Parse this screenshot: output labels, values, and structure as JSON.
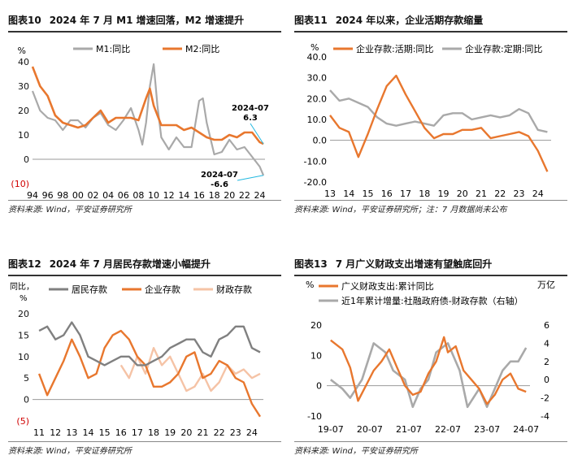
{
  "colors": {
    "orange": "#e8772e",
    "gray": "#a9a9a9",
    "darkgray": "#808080",
    "peach": "#f5c3a6",
    "red": "#d00000",
    "cyan": "#22b8e0"
  },
  "panels": [
    {
      "number": "图表10",
      "title": "2024 年 7 月 M1 增速回落，M2 增速提升",
      "source": "资料来源: Wind，平安证券研究所"
    },
    {
      "number": "图表11",
      "title": "2024 年以来，企业活期存款缩量",
      "source": "资料来源: Wind，平安证券研究所；注：7 月数据尚未公布"
    },
    {
      "number": "图表12",
      "title": "2024 年 7 月居民存款增速小幅提升",
      "source": "资料来源: Wind，平安证券研究所"
    },
    {
      "number": "图表13",
      "title": "7 月广义财政支出增速有望触底回升",
      "source": "资料来源: Wind，平安证券研究所"
    }
  ],
  "chart_data": [
    {
      "type": "line",
      "unit": "%",
      "ylim": [
        -10,
        40
      ],
      "yticks": [
        "40",
        "30",
        "20",
        "10",
        "0",
        "(10)"
      ],
      "xticks": [
        "94",
        "96",
        "98",
        "00",
        "02",
        "04",
        "06",
        "08",
        "10",
        "12",
        "14",
        "16",
        "18",
        "20",
        "22",
        "24"
      ],
      "series": [
        {
          "name": "M1:同比",
          "color": "gray",
          "x": [
            1994,
            1995,
            1996,
            1997,
            1998,
            1999,
            2000,
            2001,
            2002,
            2003,
            2004,
            2005,
            2006,
            2007,
            2008,
            2008.5,
            2009,
            2009.5,
            2010,
            2010.5,
            2011,
            2012,
            2013,
            2014,
            2015,
            2016,
            2016.5,
            2017,
            2018,
            2019,
            2020,
            2021,
            2022,
            2023,
            2024,
            2024.5
          ],
          "values": [
            28,
            20,
            17,
            16,
            12,
            16,
            16,
            13,
            17,
            19,
            14,
            12,
            16,
            21,
            12,
            6,
            15,
            30,
            39,
            22,
            9,
            4,
            9,
            5,
            5,
            24,
            25,
            15,
            2,
            3,
            8,
            4,
            5,
            1,
            -3,
            -6.6
          ]
        },
        {
          "name": "M2:同比",
          "color": "orange",
          "x": [
            1994,
            1995,
            1996,
            1997,
            1998,
            1999,
            2000,
            2001,
            2002,
            2003,
            2004,
            2005,
            2006,
            2007,
            2008,
            2009,
            2009.5,
            2010,
            2011,
            2012,
            2013,
            2014,
            2015,
            2016,
            2017,
            2018,
            2019,
            2020,
            2021,
            2022,
            2023,
            2024,
            2024.5
          ],
          "values": [
            38,
            30,
            26,
            18,
            15,
            14,
            13,
            14,
            17,
            20,
            15,
            17,
            17,
            17,
            16,
            25,
            29,
            22,
            14,
            14,
            14,
            12,
            13,
            11,
            9,
            8,
            8,
            10,
            9,
            11,
            11,
            7,
            6.3
          ]
        }
      ],
      "annotations": [
        {
          "label": "2024-07",
          "value": "6.3"
        },
        {
          "label": "2024-07",
          "value": "-6.6"
        }
      ]
    },
    {
      "type": "line",
      "unit": "%",
      "ylim": [
        -20,
        40
      ],
      "yticks": [
        "40.0",
        "30.0",
        "20.0",
        "10.0",
        "0.0",
        "-10.0",
        "-20.0"
      ],
      "xticks": [
        "13",
        "14",
        "15",
        "16",
        "17",
        "18",
        "19",
        "20",
        "21",
        "22",
        "23",
        "24"
      ],
      "series": [
        {
          "name": "企业存款:活期:同比",
          "color": "orange",
          "x": [
            2013,
            2013.5,
            2014,
            2014.5,
            2015,
            2015.5,
            2016,
            2016.5,
            2017,
            2017.5,
            2018,
            2018.5,
            2019,
            2019.5,
            2020,
            2020.5,
            2021,
            2021.5,
            2022,
            2022.5,
            2023,
            2023.5,
            2024,
            2024.5
          ],
          "values": [
            12,
            6,
            4,
            -8,
            3,
            15,
            26,
            31,
            22,
            14,
            6,
            1,
            3,
            3,
            5,
            5,
            6,
            1,
            2,
            3,
            4,
            2,
            -5,
            -15
          ]
        },
        {
          "name": "企业存款:定期:同比",
          "color": "gray",
          "x": [
            2013,
            2013.5,
            2014,
            2014.5,
            2015,
            2015.5,
            2016,
            2016.5,
            2017,
            2017.5,
            2018,
            2018.5,
            2019,
            2019.5,
            2020,
            2020.5,
            2021,
            2021.5,
            2022,
            2022.5,
            2023,
            2023.5,
            2024,
            2024.5
          ],
          "values": [
            24,
            19,
            20,
            18,
            16,
            11,
            8,
            7,
            8,
            9,
            8,
            7,
            12,
            13,
            13,
            10,
            11,
            12,
            11,
            12,
            15,
            13,
            5,
            4
          ]
        }
      ]
    },
    {
      "type": "line",
      "unit": "同比，%",
      "ylim": [
        -5,
        20
      ],
      "yticks": [
        "20",
        "15",
        "10",
        "5",
        "0",
        "(5)"
      ],
      "xticks": [
        "11",
        "12",
        "13",
        "14",
        "15",
        "16",
        "17",
        "18",
        "19",
        "20",
        "21",
        "22",
        "23",
        "24"
      ],
      "series": [
        {
          "name": "居民存款",
          "color": "darkgray",
          "x": [
            2011,
            2011.5,
            2012,
            2012.5,
            2013,
            2013.5,
            2014,
            2014.5,
            2015,
            2015.5,
            2016,
            2016.5,
            2017,
            2017.5,
            2018,
            2018.5,
            2019,
            2019.5,
            2020,
            2020.5,
            2021,
            2021.5,
            2022,
            2022.5,
            2023,
            2023.5,
            2024,
            2024.5
          ],
          "values": [
            16,
            17,
            14,
            15,
            18,
            15,
            10,
            9,
            8,
            9,
            10,
            10,
            8,
            8,
            9,
            10,
            12,
            13,
            14,
            14,
            11,
            10,
            14,
            15,
            17,
            17,
            12,
            11
          ]
        },
        {
          "name": "企业存款",
          "color": "orange",
          "x": [
            2011,
            2011.5,
            2012,
            2012.5,
            2013,
            2013.5,
            2014,
            2014.5,
            2015,
            2015.5,
            2016,
            2016.5,
            2017,
            2017.5,
            2018,
            2018.5,
            2019,
            2019.5,
            2020,
            2020.5,
            2021,
            2021.5,
            2022,
            2022.5,
            2023,
            2023.5,
            2024,
            2024.5
          ],
          "values": [
            6,
            1,
            5,
            9,
            14,
            10,
            5,
            6,
            12,
            15,
            16,
            14,
            10,
            8,
            3,
            3,
            4,
            6,
            10,
            11,
            5,
            6,
            9,
            8,
            5,
            4,
            -1,
            -4
          ]
        },
        {
          "name": "财政存款",
          "color": "peach",
          "x": [
            2011,
            2012,
            2013,
            2014,
            2015,
            2016,
            2016.5,
            2017,
            2017.5,
            2018,
            2018.5,
            2019,
            2019.5,
            2020,
            2020.5,
            2021,
            2021.5,
            2022,
            2022.5,
            2023,
            2023.5,
            2024,
            2024.5
          ],
          "values": [
            null,
            null,
            null,
            null,
            null,
            8,
            5,
            10,
            6,
            12,
            8,
            10,
            6,
            2,
            3,
            6,
            2,
            4,
            8,
            6,
            7,
            5,
            6
          ]
        }
      ]
    },
    {
      "type": "line",
      "unit": "%",
      "unit_right": "万亿",
      "ylim": [
        -10,
        20
      ],
      "ylim_right": [
        -4,
        6
      ],
      "yticks": [
        "20",
        "10",
        "0",
        "-10"
      ],
      "yticks_right": [
        "6",
        "4",
        "2",
        "0",
        "-2",
        "-4"
      ],
      "xticks": [
        "19-07",
        "20-07",
        "21-07",
        "22-07",
        "23-07",
        "24-07"
      ],
      "series": [
        {
          "name": "广义财政支出:累计同比",
          "color": "orange",
          "axis": "left",
          "x": [
            2019.5,
            2019.8,
            2020.0,
            2020.2,
            2020.4,
            2020.6,
            2020.8,
            2021.0,
            2021.2,
            2021.4,
            2021.6,
            2021.8,
            2022.0,
            2022.2,
            2022.4,
            2022.5,
            2022.7,
            2022.9,
            2023.1,
            2023.3,
            2023.5,
            2023.7,
            2023.9,
            2024.1,
            2024.3,
            2024.5
          ],
          "values": [
            15,
            12,
            6,
            -5,
            0,
            5,
            8,
            12,
            6,
            0,
            -3,
            -2,
            4,
            8,
            16,
            11,
            13,
            5,
            2,
            -1,
            -6,
            -3,
            2,
            4,
            -1,
            -2
          ]
        },
        {
          "name": "近1年累计增量:社融政府债-财政存款（右轴）",
          "color": "gray",
          "axis": "right",
          "x": [
            2019.5,
            2019.8,
            2020.0,
            2020.3,
            2020.6,
            2020.9,
            2021.1,
            2021.4,
            2021.6,
            2021.8,
            2022.0,
            2022.2,
            2022.5,
            2022.8,
            2023.0,
            2023.3,
            2023.5,
            2023.7,
            2023.9,
            2024.1,
            2024.3,
            2024.5
          ],
          "values": [
            0,
            -1,
            -2,
            0,
            4,
            3,
            1,
            0,
            -3,
            -1,
            0,
            3,
            4,
            1,
            -3,
            -1,
            -3,
            -1,
            1,
            2,
            2,
            3.5
          ]
        }
      ]
    }
  ]
}
